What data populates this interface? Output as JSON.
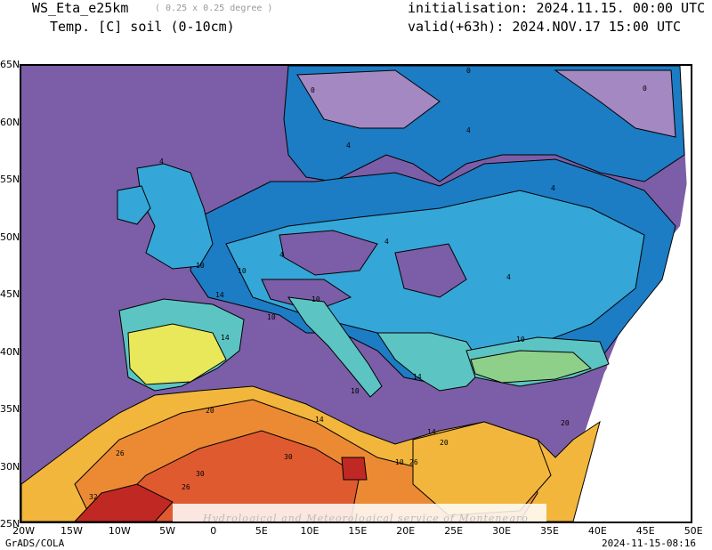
{
  "header": {
    "model": "WS_Eta_e25km",
    "resolution": "( 0.25 x 0.25 degree )",
    "variable": "Temp. [C] soil (0-10cm)",
    "init": "initialisation: 2024.11.15. 00:00 UTC",
    "valid": "valid(+63h): 2024.NOV.17 15:00 UTC"
  },
  "axes": {
    "lat_labels": [
      "65N",
      "60N",
      "55N",
      "50N",
      "45N",
      "40N",
      "35N",
      "30N",
      "25N"
    ],
    "lon_labels": [
      "20W",
      "15W",
      "10W",
      "5W",
      "0",
      "5E",
      "10E",
      "15E",
      "20E",
      "25E",
      "30E",
      "35E",
      "40E",
      "45E",
      "50E"
    ]
  },
  "contour_labels": [
    "0",
    "4",
    "10",
    "14",
    "20",
    "26",
    "30",
    "32"
  ],
  "watermark": "Hydrological and Meteorological service of Montenegro",
  "footer": {
    "left": "GrADS/COLA",
    "right": "2024-11-15-08:16"
  },
  "colors": {
    "sea": "#7b5ea7",
    "below_zero": "#a488c2",
    "t0_4": "#1c7cc4",
    "t4_8": "#35a6d8",
    "t8_12": "#5cc4c2",
    "t12_16": "#8ed08a",
    "t16_20": "#e8e85a",
    "t20_24": "#f2b63c",
    "t24_28": "#ec8a34",
    "t28_32": "#e05a30",
    "t32_plus": "#c02824"
  }
}
